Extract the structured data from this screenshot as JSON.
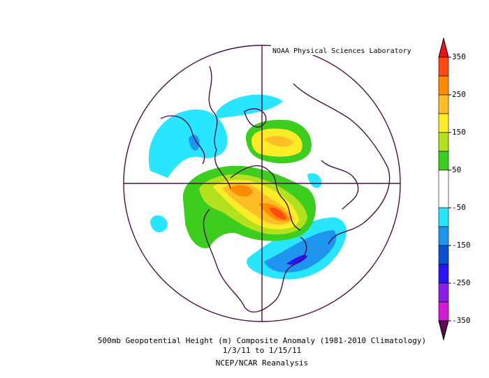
{
  "credit": "NOAA Physical Sciences Laboratory",
  "caption": [
    "500mb Geopotential Height (m) Composite Anomaly (1981-2010 Climatology)",
    "1/3/11  to 1/15/11",
    "NCEP/NCAR Reanalysis"
  ],
  "colorbar": {
    "levels": [
      350,
      300,
      250,
      200,
      150,
      100,
      50,
      -50,
      -100,
      -150,
      -200,
      -250,
      -300,
      -350
    ],
    "ticks": [
      350,
      250,
      150,
      50,
      -50,
      -150,
      -250,
      -350
    ],
    "colors": [
      "#e8141c",
      "#ff4a14",
      "#ff8c00",
      "#ffbe28",
      "#ffec28",
      "#b4e11e",
      "#3ccd1e",
      "#ffffff",
      "#28e6ff",
      "#1e96f0",
      "#0a50d2",
      "#2814f0",
      "#8c1ee6",
      "#d21ed2",
      "#8c1e78",
      "#5a0a50"
    ]
  }
}
